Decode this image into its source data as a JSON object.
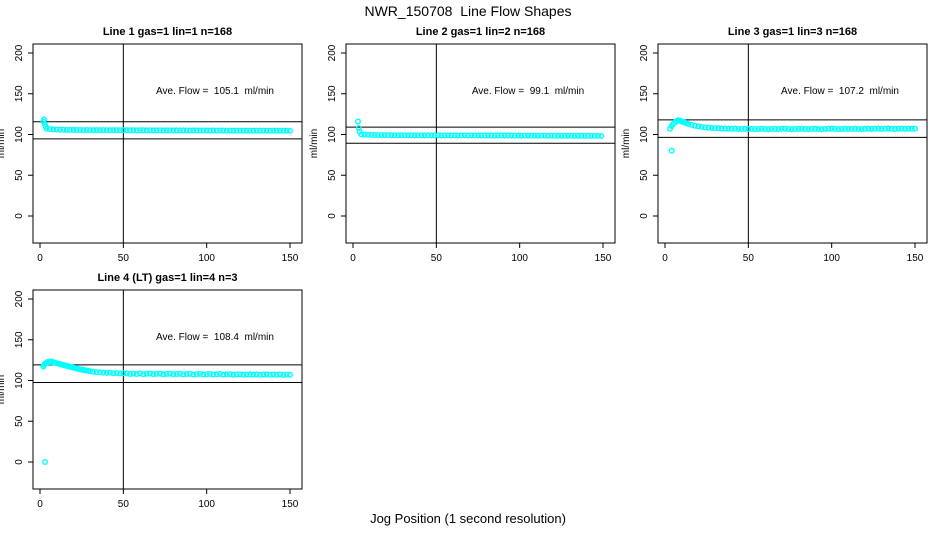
{
  "page": {
    "title": "NWR_150708  Line Flow Shapes",
    "xlabel": "Jog Position (1 second resolution)"
  },
  "style": {
    "point_color": "#00FFFF",
    "line_color": "#000000",
    "background": "#FFFFFF"
  },
  "axes": {
    "x_ticks": [
      0,
      50,
      100,
      150
    ],
    "y_ticks": [
      0,
      50,
      100,
      150,
      200
    ],
    "ylabel": "ml/min",
    "vline_x": 50,
    "xlim": [
      0,
      157
    ],
    "ylim": [
      -33,
      212
    ],
    "grid": false,
    "legend": "none"
  },
  "chart_data": [
    {
      "type": "scatter",
      "title": "Line 1 gas=1 lin=1 n=168",
      "ave_flow_label": "Ave. Flow =  105.1  ml/min",
      "mean_flow": 105.1,
      "upper_line": 115.6,
      "lower_line": 94.6,
      "points": [
        [
          2,
          116
        ],
        [
          2.5,
          118.5
        ],
        [
          3,
          112
        ],
        [
          3.5,
          109.5
        ],
        [
          4,
          107.0
        ],
        [
          6,
          106.6
        ],
        [
          8,
          106.3
        ],
        [
          10,
          106.1
        ],
        [
          12,
          105.9
        ],
        [
          14,
          105.8
        ],
        [
          16,
          105.7
        ],
        [
          18,
          105.6
        ],
        [
          20,
          105.6
        ],
        [
          22,
          105.5
        ],
        [
          24,
          105.5
        ],
        [
          26,
          105.4
        ],
        [
          28,
          105.5
        ],
        [
          30,
          105.4
        ],
        [
          32,
          105.3
        ],
        [
          34,
          105.4
        ],
        [
          36,
          105.3
        ],
        [
          38,
          105.3
        ],
        [
          40,
          105.4
        ],
        [
          42,
          105.2
        ],
        [
          44,
          105.3
        ],
        [
          46,
          105.3
        ],
        [
          48,
          105.2
        ],
        [
          50,
          105.3
        ],
        [
          52,
          105.2
        ],
        [
          54,
          105.2
        ],
        [
          56,
          105.3
        ],
        [
          58,
          105.1
        ],
        [
          60,
          105.2
        ],
        [
          62,
          105.2
        ],
        [
          64,
          105.1
        ],
        [
          66,
          105.2
        ],
        [
          68,
          105.1
        ],
        [
          70,
          105.1
        ],
        [
          72,
          105.2
        ],
        [
          74,
          105.0
        ],
        [
          76,
          105.1
        ],
        [
          78,
          105.1
        ],
        [
          80,
          105.0
        ],
        [
          82,
          105.1
        ],
        [
          84,
          105.0
        ],
        [
          86,
          105.0
        ],
        [
          88,
          105.1
        ],
        [
          90,
          104.9
        ],
        [
          92,
          105.0
        ],
        [
          94,
          105.0
        ],
        [
          96,
          104.9
        ],
        [
          98,
          105.0
        ],
        [
          100,
          104.9
        ],
        [
          102,
          104.9
        ],
        [
          104,
          105.0
        ],
        [
          106,
          104.8
        ],
        [
          108,
          104.9
        ],
        [
          110,
          104.9
        ],
        [
          112,
          104.8
        ],
        [
          114,
          104.9
        ],
        [
          116,
          104.8
        ],
        [
          118,
          104.8
        ],
        [
          120,
          104.9
        ],
        [
          122,
          104.7
        ],
        [
          124,
          104.8
        ],
        [
          126,
          104.8
        ],
        [
          128,
          104.7
        ],
        [
          130,
          104.8
        ],
        [
          132,
          104.7
        ],
        [
          134,
          104.7
        ],
        [
          136,
          104.8
        ],
        [
          138,
          104.6
        ],
        [
          140,
          104.7
        ],
        [
          142,
          104.7
        ],
        [
          144,
          104.6
        ],
        [
          146,
          104.7
        ],
        [
          148,
          104.6
        ],
        [
          150,
          104.6
        ]
      ]
    },
    {
      "type": "scatter",
      "title": "Line 2 gas=1 lin=2 n=168",
      "ave_flow_label": "Ave. Flow =  99.1  ml/min",
      "mean_flow": 99.1,
      "upper_line": 109.0,
      "lower_line": 89.2,
      "points": [
        [
          3,
          116
        ],
        [
          3.5,
          108
        ],
        [
          4,
          103.5
        ],
        [
          5,
          100.2
        ],
        [
          7,
          99.9
        ],
        [
          9,
          99.7
        ],
        [
          11,
          99.5
        ],
        [
          13,
          99.4
        ],
        [
          15,
          99.3
        ],
        [
          17,
          99.3
        ],
        [
          19,
          99.2
        ],
        [
          21,
          99.2
        ],
        [
          23,
          99.1
        ],
        [
          25,
          99.1
        ],
        [
          27,
          99.0
        ],
        [
          29,
          99.1
        ],
        [
          31,
          99.0
        ],
        [
          33,
          99.0
        ],
        [
          35,
          99.1
        ],
        [
          37,
          98.9
        ],
        [
          39,
          99.0
        ],
        [
          41,
          99.0
        ],
        [
          43,
          98.9
        ],
        [
          45,
          99.0
        ],
        [
          47,
          98.9
        ],
        [
          49,
          98.9
        ],
        [
          51,
          99.0
        ],
        [
          53,
          98.8
        ],
        [
          55,
          98.9
        ],
        [
          57,
          98.9
        ],
        [
          59,
          98.8
        ],
        [
          61,
          98.9
        ],
        [
          63,
          98.8
        ],
        [
          65,
          98.8
        ],
        [
          67,
          98.9
        ],
        [
          69,
          98.7
        ],
        [
          71,
          98.8
        ],
        [
          73,
          98.8
        ],
        [
          75,
          98.7
        ],
        [
          77,
          98.8
        ],
        [
          79,
          98.7
        ],
        [
          81,
          98.7
        ],
        [
          83,
          98.8
        ],
        [
          85,
          98.6
        ],
        [
          87,
          98.7
        ],
        [
          89,
          98.7
        ],
        [
          91,
          98.6
        ],
        [
          93,
          98.7
        ],
        [
          95,
          98.6
        ],
        [
          97,
          98.6
        ],
        [
          99,
          98.7
        ],
        [
          101,
          98.5
        ],
        [
          103,
          98.6
        ],
        [
          105,
          98.6
        ],
        [
          107,
          98.5
        ],
        [
          109,
          98.6
        ],
        [
          111,
          98.5
        ],
        [
          113,
          98.5
        ],
        [
          115,
          98.6
        ],
        [
          117,
          98.4
        ],
        [
          119,
          98.5
        ],
        [
          121,
          98.5
        ],
        [
          123,
          98.4
        ],
        [
          125,
          98.5
        ],
        [
          127,
          98.4
        ],
        [
          129,
          98.4
        ],
        [
          131,
          98.5
        ],
        [
          133,
          98.3
        ],
        [
          135,
          98.4
        ],
        [
          137,
          98.4
        ],
        [
          139,
          98.3
        ],
        [
          141,
          98.4
        ],
        [
          143,
          98.3
        ],
        [
          145,
          98.3
        ],
        [
          147,
          98.4
        ],
        [
          149,
          98.2
        ]
      ]
    },
    {
      "type": "scatter",
      "title": "Line 3 gas=1 lin=3 n=168",
      "ave_flow_label": "Ave. Flow =  107.2  ml/min",
      "mean_flow": 107.2,
      "upper_line": 117.9,
      "lower_line": 96.5,
      "points": [
        [
          4,
          80
        ],
        [
          3,
          107
        ],
        [
          4,
          110.5
        ],
        [
          5,
          113
        ],
        [
          6,
          115
        ],
        [
          7,
          116.5
        ],
        [
          8,
          117.5
        ],
        [
          9,
          117
        ],
        [
          10,
          116
        ],
        [
          11,
          115.3
        ],
        [
          12,
          114.5
        ],
        [
          13,
          113.8
        ],
        [
          14,
          113
        ],
        [
          16,
          111.8
        ],
        [
          18,
          110.8
        ],
        [
          20,
          110
        ],
        [
          22,
          109.3
        ],
        [
          24,
          108.8
        ],
        [
          26,
          108.4
        ],
        [
          28,
          108
        ],
        [
          30,
          107.8
        ],
        [
          32,
          107.6
        ],
        [
          34,
          107.4
        ],
        [
          36,
          107.3
        ],
        [
          38,
          107.1
        ],
        [
          40,
          107.0
        ],
        [
          42,
          107.2
        ],
        [
          44,
          106.9
        ],
        [
          46,
          106.8
        ],
        [
          48,
          107.0
        ],
        [
          50,
          106.7
        ],
        [
          52,
          106.9
        ],
        [
          54,
          106.6
        ],
        [
          56,
          106.8
        ],
        [
          58,
          107.0
        ],
        [
          60,
          106.7
        ],
        [
          62,
          106.5
        ],
        [
          64,
          106.8
        ],
        [
          66,
          106.9
        ],
        [
          68,
          106.6
        ],
        [
          70,
          107.0
        ],
        [
          72,
          107.2
        ],
        [
          74,
          106.8
        ],
        [
          76,
          106.5
        ],
        [
          78,
          106.7
        ],
        [
          80,
          106.9
        ],
        [
          82,
          107.1
        ],
        [
          84,
          106.8
        ],
        [
          86,
          106.6
        ],
        [
          88,
          106.9
        ],
        [
          90,
          107.0
        ],
        [
          92,
          106.7
        ],
        [
          94,
          106.5
        ],
        [
          96,
          106.8
        ],
        [
          98,
          107.0
        ],
        [
          100,
          107.2
        ],
        [
          102,
          106.9
        ],
        [
          104,
          106.6
        ],
        [
          106,
          106.8
        ],
        [
          108,
          107.0
        ],
        [
          110,
          106.7
        ],
        [
          112,
          106.9
        ],
        [
          114,
          107.1
        ],
        [
          116,
          106.8
        ],
        [
          118,
          106.6
        ],
        [
          120,
          106.9
        ],
        [
          122,
          107.0
        ],
        [
          124,
          106.8
        ],
        [
          126,
          107.0
        ],
        [
          128,
          107.2
        ],
        [
          130,
          106.9
        ],
        [
          132,
          107.1
        ],
        [
          134,
          107.3
        ],
        [
          136,
          107.0
        ],
        [
          138,
          106.8
        ],
        [
          140,
          107.1
        ],
        [
          142,
          107.2
        ],
        [
          144,
          106.9
        ],
        [
          146,
          107.1
        ],
        [
          148,
          107.0
        ],
        [
          150,
          107.2
        ]
      ]
    },
    {
      "type": "scatter",
      "title": "Line 4 (LT) gas=1 lin=4 n=3",
      "ave_flow_label": "Ave. Flow =  108.4  ml/min",
      "mean_flow": 108.4,
      "upper_line": 119.2,
      "lower_line": 97.6,
      "points": [
        [
          3,
          0
        ],
        [
          2,
          117
        ],
        [
          2.5,
          119
        ],
        [
          3,
          120.5
        ],
        [
          4,
          122
        ],
        [
          5,
          123
        ],
        [
          6,
          122.5
        ],
        [
          7,
          123.5
        ],
        [
          8,
          122.3
        ],
        [
          9,
          121.8
        ],
        [
          10,
          121.2
        ],
        [
          11,
          120.7
        ],
        [
          12,
          120.2
        ],
        [
          13,
          119.6
        ],
        [
          14,
          119
        ],
        [
          15,
          118.6
        ],
        [
          16,
          118
        ],
        [
          17,
          117.4
        ],
        [
          18,
          116.8
        ],
        [
          19,
          116.3
        ],
        [
          20,
          115.8
        ],
        [
          21,
          115.3
        ],
        [
          22,
          114.8
        ],
        [
          23,
          114.3
        ],
        [
          24,
          113.8
        ],
        [
          25,
          113.4
        ],
        [
          26,
          113
        ],
        [
          27,
          112.6
        ],
        [
          28,
          112.2
        ],
        [
          29,
          111.8
        ],
        [
          30,
          111.4
        ],
        [
          32,
          110.8
        ],
        [
          34,
          110.3
        ],
        [
          36,
          109.9
        ],
        [
          38,
          109.6
        ],
        [
          40,
          109.3
        ],
        [
          42,
          109.6
        ],
        [
          44,
          108.9
        ],
        [
          46,
          109.2
        ],
        [
          48,
          108.6
        ],
        [
          50,
          108.9
        ],
        [
          52,
          108.7
        ],
        [
          54,
          107.9
        ],
        [
          56,
          108.5
        ],
        [
          58,
          108.0
        ],
        [
          60,
          108.8
        ],
        [
          62,
          107.7
        ],
        [
          64,
          108.3
        ],
        [
          66,
          108.6
        ],
        [
          68,
          107.8
        ],
        [
          70,
          108.2
        ],
        [
          72,
          108.5
        ],
        [
          74,
          107.6
        ],
        [
          76,
          108.1
        ],
        [
          78,
          108.4
        ],
        [
          80,
          107.7
        ],
        [
          82,
          108.0
        ],
        [
          84,
          108.3
        ],
        [
          86,
          107.5
        ],
        [
          88,
          107.9
        ],
        [
          90,
          108.2
        ],
        [
          92,
          107.4
        ],
        [
          94,
          107.8
        ],
        [
          96,
          108.1
        ],
        [
          98,
          107.3
        ],
        [
          100,
          107.7
        ],
        [
          102,
          108.0
        ],
        [
          104,
          107.4
        ],
        [
          106,
          107.6
        ],
        [
          108,
          107.9
        ],
        [
          110,
          107.2
        ],
        [
          112,
          107.6
        ],
        [
          114,
          107.8
        ],
        [
          116,
          107.1
        ],
        [
          118,
          107.5
        ],
        [
          120,
          107.7
        ],
        [
          122,
          107.0
        ],
        [
          124,
          107.4
        ],
        [
          126,
          107.6
        ],
        [
          128,
          107.2
        ],
        [
          130,
          107.5
        ],
        [
          132,
          106.9
        ],
        [
          134,
          107.3
        ],
        [
          136,
          107.6
        ],
        [
          138,
          107.0
        ],
        [
          140,
          107.4
        ],
        [
          142,
          107.1
        ],
        [
          144,
          107.5
        ],
        [
          146,
          106.8
        ],
        [
          148,
          107.2
        ],
        [
          150,
          107.0
        ]
      ]
    }
  ]
}
